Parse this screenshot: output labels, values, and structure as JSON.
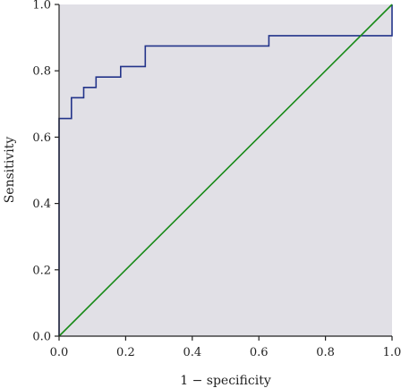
{
  "chart_data": {
    "type": "line",
    "title": "",
    "xlabel": "1 − specificity",
    "ylabel": "Sensitivity",
    "xlim": [
      0.0,
      1.0
    ],
    "ylim": [
      0.0,
      1.0
    ],
    "xticks": [
      "0.0",
      "0.2",
      "0.4",
      "0.6",
      "0.8",
      "1.0"
    ],
    "yticks": [
      "0.0",
      "0.2",
      "0.4",
      "0.6",
      "0.8",
      "1.0"
    ],
    "grid": false,
    "legend": "none",
    "colors": {
      "plot_background": "#e1e0e6",
      "roc_curve": "#23348a",
      "reference_line": "#178a17"
    },
    "series": [
      {
        "points": [
          [
            0.0,
            0.0
          ],
          [
            0.0,
            0.656
          ],
          [
            0.037,
            0.656
          ],
          [
            0.037,
            0.719
          ],
          [
            0.074,
            0.719
          ],
          [
            0.074,
            0.75
          ],
          [
            0.111,
            0.75
          ],
          [
            0.111,
            0.781
          ],
          [
            0.185,
            0.781
          ],
          [
            0.185,
            0.813
          ],
          [
            0.259,
            0.813
          ],
          [
            0.259,
            0.875
          ],
          [
            0.63,
            0.875
          ],
          [
            0.63,
            0.906
          ],
          [
            1.0,
            0.906
          ],
          [
            1.0,
            1.0
          ]
        ]
      },
      {
        "points": [
          [
            0.0,
            0.0
          ],
          [
            1.0,
            1.0
          ]
        ]
      }
    ]
  }
}
